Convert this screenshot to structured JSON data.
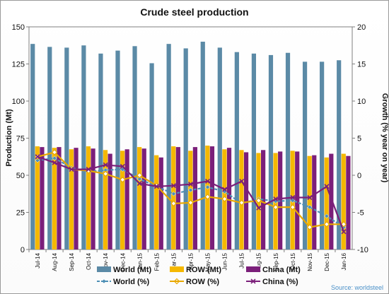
{
  "chart_data": {
    "type": "bar",
    "title": "Crude steel production",
    "source": "Source: worldsteel",
    "ylabel_left": "Production (Mt)",
    "ylabel_right": "Growth (% year on year)",
    "ylim_left": [
      0,
      150
    ],
    "yticks_left": [
      "0",
      "25",
      "50",
      "75",
      "100",
      "125",
      "150"
    ],
    "ylim_right": [
      -10,
      20
    ],
    "yticks_right": [
      "-10",
      "-5",
      "0",
      "5",
      "10",
      "15",
      "20"
    ],
    "categories": [
      "Jul-14",
      "Aug-14",
      "Sep-14",
      "Oct-14",
      "Nov-14",
      "Dec-14",
      "Jan-15",
      "Feb-15",
      "Mar-15",
      "Apr-15",
      "May-15",
      "Jun-15",
      "Jul-15",
      "Aug-15",
      "Sep-15",
      "Oct-15",
      "Nov-15",
      "Dec-15",
      "Jan-16"
    ],
    "bar_series": [
      {
        "name": "World (Mt)",
        "color": "#5b8aa6",
        "values": [
          138.5,
          136.5,
          136,
          137.5,
          132,
          134,
          137,
          125.5,
          138.5,
          135.5,
          140,
          136,
          133,
          132,
          131,
          132.5,
          126.5,
          126.5,
          127.5
        ]
      },
      {
        "name": "ROW (Mt)",
        "color": "#f5b800",
        "values": [
          69.5,
          68.5,
          67.5,
          69.5,
          67,
          66.5,
          69,
          63.5,
          69.5,
          66.5,
          70,
          67.5,
          67,
          65,
          65,
          66.5,
          63,
          62,
          64.5
        ]
      },
      {
        "name": "China (Mt)",
        "color": "#7b1f7a",
        "values": [
          69,
          69,
          68.5,
          68,
          64.5,
          67.5,
          68,
          62,
          69,
          69,
          69.5,
          68.5,
          65.5,
          67,
          66,
          66,
          63.5,
          64.5,
          63
        ]
      }
    ],
    "line_series": [
      {
        "name": "World (%)",
        "color": "#4d8fb5",
        "values": [
          2.0,
          2.3,
          1.0,
          0.5,
          0.7,
          0.8,
          -0.5,
          -1.5,
          -2.5,
          -2.0,
          -1.6,
          -2.2,
          -3.8,
          -3.2,
          -3.5,
          -3.4,
          -4.3,
          -5.5,
          -7.0
        ]
      },
      {
        "name": "ROW (%)",
        "color": "#e8a800",
        "values": [
          2.5,
          3.1,
          0.8,
          0.6,
          0.2,
          -0.6,
          0.0,
          -1.4,
          -3.8,
          -3.7,
          -2.9,
          -3.2,
          -3.7,
          -3.4,
          -4.3,
          -4.3,
          -7.0,
          -6.6,
          -6.6
        ]
      },
      {
        "name": "China (%)",
        "color": "#7b1f7a",
        "values": [
          2.5,
          1.7,
          0.8,
          0.8,
          1.4,
          1.2,
          -1.1,
          -1.5,
          -1.4,
          -1.2,
          -0.8,
          -1.9,
          -0.8,
          -4.4,
          -3.2,
          -3.0,
          -3.0,
          -1.5,
          -7.6
        ]
      }
    ],
    "legend_position": "bottom",
    "grid": false
  }
}
